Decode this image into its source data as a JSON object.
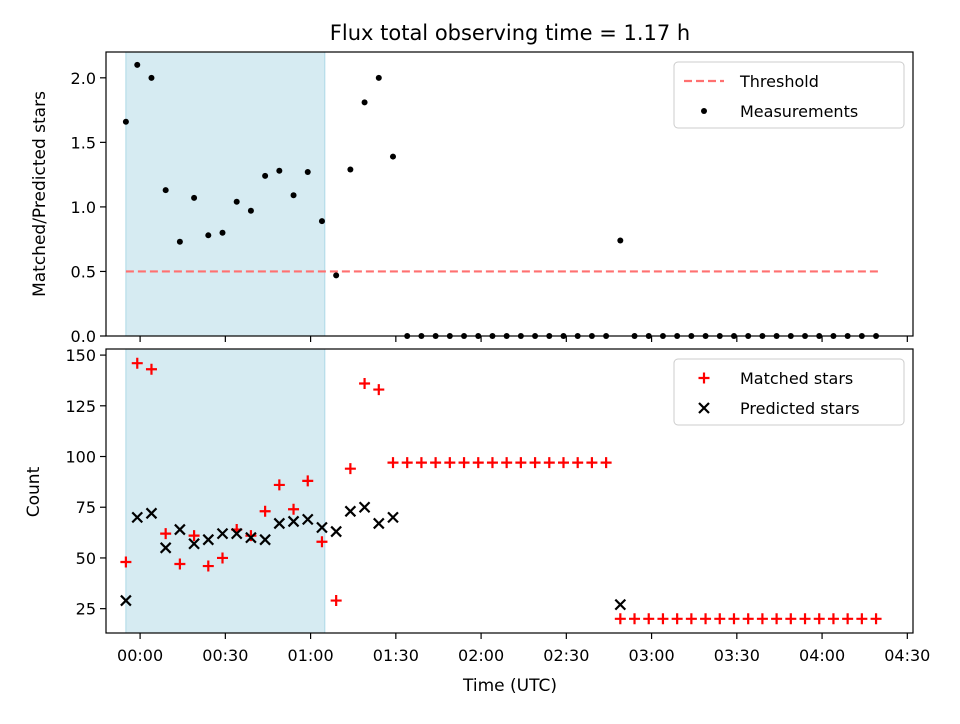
{
  "chart_data": [
    {
      "type": "scatter",
      "title": "Flux total observing time = 1.17 h",
      "xlabel": "",
      "ylabel": "Matched/Predicted stars",
      "ylim": [
        0,
        2.2
      ],
      "yticks": [
        0.0,
        0.5,
        1.0,
        1.5,
        2.0
      ],
      "ytick_labels": [
        "0.0",
        "0.5",
        "1.0",
        "1.5",
        "2.0"
      ],
      "shaded_span": {
        "from": "-0:05",
        "to": "1:05",
        "color": "#add8e6"
      },
      "legend": {
        "placement": "upper right",
        "entries": [
          "Threshold",
          "Measurements"
        ]
      },
      "threshold": {
        "name": "Threshold",
        "value": 0.5,
        "x_from": "-0:05",
        "x_to": "4:20",
        "color": "#ff7070",
        "style": "dashed"
      },
      "series": [
        {
          "name": "Measurements",
          "color": "#000000",
          "x": [
            "-0:05",
            "-0:01",
            "0:04",
            "0:09",
            "0:14",
            "0:19",
            "0:24",
            "0:29",
            "0:34",
            "0:39",
            "0:44",
            "0:49",
            "0:54",
            "0:59",
            "1:04",
            "1:09",
            "1:14",
            "1:19",
            "1:24",
            "1:29",
            "1:34",
            "1:39",
            "1:44",
            "1:49",
            "1:54",
            "1:59",
            "2:04",
            "2:09",
            "2:14",
            "2:19",
            "2:24",
            "2:29",
            "2:34",
            "2:39",
            "2:44",
            "2:49",
            "2:54",
            "2:59",
            "3:04",
            "3:09",
            "3:14",
            "3:19",
            "3:24",
            "3:29",
            "3:34",
            "3:39",
            "3:44",
            "3:49",
            "3:54",
            "3:59",
            "4:04",
            "4:09",
            "4:14",
            "4:19"
          ],
          "y": [
            1.66,
            2.1,
            2.0,
            1.13,
            0.73,
            1.07,
            0.78,
            0.8,
            1.04,
            0.97,
            1.24,
            1.28,
            1.09,
            1.27,
            0.89,
            0.47,
            1.29,
            1.81,
            2.0,
            1.39,
            0,
            0,
            0,
            0,
            0,
            0,
            0,
            0,
            0,
            0,
            0,
            0,
            0,
            0,
            0,
            0.74,
            0,
            0,
            0,
            0,
            0,
            0,
            0,
            0,
            0,
            0,
            0,
            0,
            0,
            0,
            0,
            0,
            0,
            0
          ]
        }
      ]
    },
    {
      "type": "scatter",
      "xlabel": "Time (UTC)",
      "ylabel": "Count",
      "ylim": [
        13,
        153
      ],
      "yticks": [
        25,
        50,
        75,
        100,
        125,
        150
      ],
      "ytick_labels": [
        "25",
        "50",
        "75",
        "100",
        "125",
        "150"
      ],
      "xlim": [
        "-0:12",
        "4:32"
      ],
      "xticks": [
        "0:00",
        "0:30",
        "1:00",
        "1:30",
        "2:00",
        "2:30",
        "3:00",
        "3:30",
        "4:00",
        "4:30"
      ],
      "xtick_labels": [
        "00:00",
        "00:30",
        "01:00",
        "01:30",
        "02:00",
        "02:30",
        "03:00",
        "03:30",
        "04:00",
        "04:30"
      ],
      "shaded_span": {
        "from": "-0:05",
        "to": "1:05",
        "color": "#add8e6"
      },
      "legend": {
        "placement": "upper right",
        "entries": [
          "Matched stars",
          "Predicted stars"
        ]
      },
      "series": [
        {
          "name": "Matched stars",
          "marker": "plus",
          "color": "#ff0000",
          "x": [
            "-0:05",
            "-0:01",
            "0:04",
            "0:09",
            "0:14",
            "0:19",
            "0:24",
            "0:29",
            "0:34",
            "0:39",
            "0:44",
            "0:49",
            "0:54",
            "0:59",
            "1:04",
            "1:09",
            "1:14",
            "1:19",
            "1:24",
            "1:29",
            "1:34",
            "1:39",
            "1:44",
            "1:49",
            "1:54",
            "1:59",
            "2:04",
            "2:09",
            "2:14",
            "2:19",
            "2:24",
            "2:29",
            "2:34",
            "2:39",
            "2:44",
            "2:49",
            "2:54",
            "2:59",
            "3:04",
            "3:09",
            "3:14",
            "3:19",
            "3:24",
            "3:29",
            "3:34",
            "3:39",
            "3:44",
            "3:49",
            "3:54",
            "3:59",
            "4:04",
            "4:09",
            "4:14",
            "4:19"
          ],
          "y": [
            48,
            146,
            143,
            62,
            47,
            61,
            46,
            50,
            64,
            61,
            73,
            86,
            74,
            88,
            58,
            29,
            94,
            136,
            133,
            97,
            97,
            97,
            97,
            97,
            97,
            97,
            97,
            97,
            97,
            97,
            97,
            97,
            97,
            97,
            97,
            20,
            20,
            20,
            20,
            20,
            20,
            20,
            20,
            20,
            20,
            20,
            20,
            20,
            20,
            20,
            20,
            20,
            20,
            20
          ]
        },
        {
          "name": "Predicted stars",
          "marker": "x",
          "color": "#000000",
          "x": [
            "-0:05",
            "-0:01",
            "0:04",
            "0:09",
            "0:14",
            "0:19",
            "0:24",
            "0:29",
            "0:34",
            "0:39",
            "0:44",
            "0:49",
            "0:54",
            "0:59",
            "1:04",
            "1:09",
            "1:14",
            "1:19",
            "1:24",
            "1:29",
            "2:49"
          ],
          "y": [
            29,
            70,
            72,
            55,
            64,
            57,
            59,
            62,
            62,
            60,
            59,
            67,
            68,
            69,
            65,
            63,
            73,
            75,
            67,
            70,
            27
          ]
        }
      ]
    }
  ]
}
